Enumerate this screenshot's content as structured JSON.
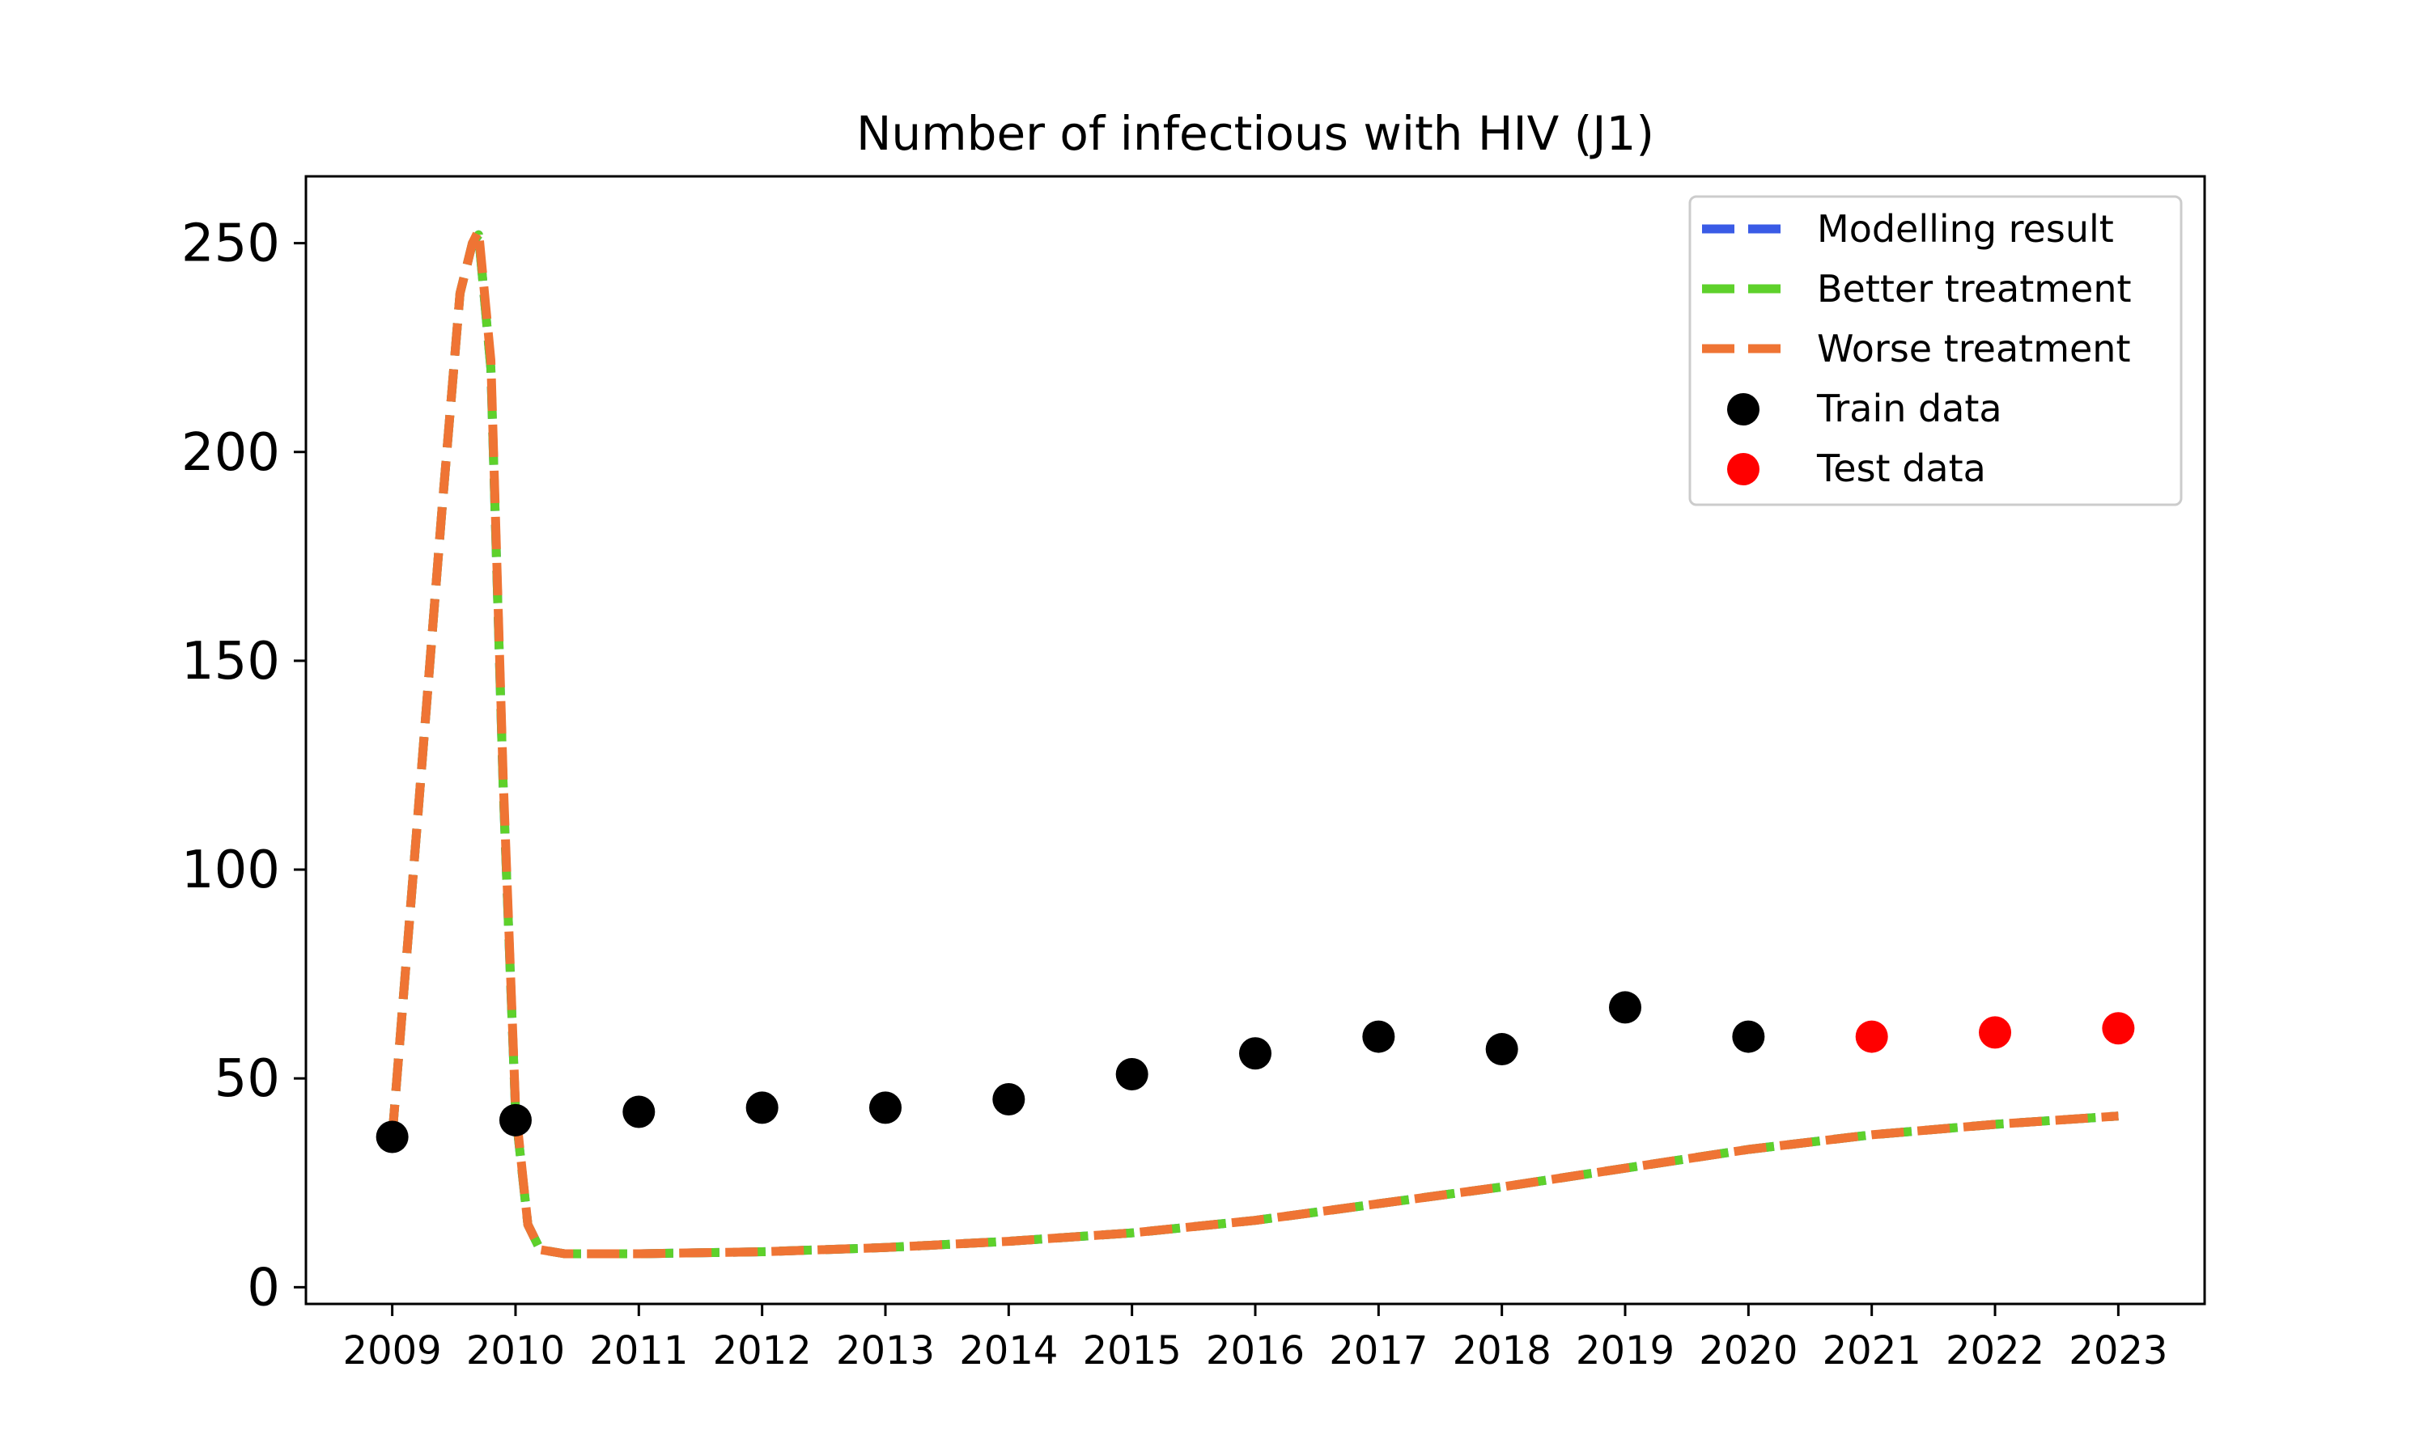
{
  "chart_data": {
    "type": "line",
    "title": "Number of infectious with HIV (J1)",
    "xlabel": "",
    "ylabel": "",
    "xlim": [
      2008.3,
      2023.7
    ],
    "ylim": [
      -4,
      266
    ],
    "x_ticks": [
      2009,
      2010,
      2011,
      2012,
      2013,
      2014,
      2015,
      2016,
      2017,
      2018,
      2019,
      2020,
      2021,
      2022,
      2023
    ],
    "x_tick_labels": [
      "2009",
      "2010",
      "2011",
      "2012",
      "2013",
      "2014",
      "2015",
      "2016",
      "2017",
      "2018",
      "2019",
      "2020",
      "2021",
      "2022",
      "2023"
    ],
    "y_ticks": [
      0,
      50,
      100,
      150,
      200,
      250
    ],
    "y_tick_labels": [
      "0",
      "50",
      "100",
      "150",
      "200",
      "250"
    ],
    "grid": false,
    "legend_position": "top-right",
    "series": [
      {
        "name": "Modelling result",
        "kind": "line",
        "style": "dashed",
        "color": "#3a5be6",
        "x": [
          2009.0,
          2009.2,
          2009.4,
          2009.55,
          2009.65,
          2009.7,
          2009.8,
          2009.9,
          2010.0,
          2010.1,
          2010.2,
          2010.3,
          2010.4,
          2010.6,
          2011.0,
          2012.0,
          2013.0,
          2014.0,
          2015.0,
          2016.0,
          2017.0,
          2018.0,
          2019.0,
          2020.0,
          2021.0,
          2022.0,
          2023.0
        ],
        "y": [
          36,
          110,
          185,
          238,
          250,
          252,
          220,
          120,
          42,
          15,
          9,
          8.5,
          8,
          8,
          8,
          8.5,
          9.5,
          11,
          13,
          16,
          20,
          24,
          28.5,
          33,
          36.5,
          39,
          41
        ]
      },
      {
        "name": "Better treatment",
        "kind": "line",
        "style": "dashed",
        "color": "#5ed12b",
        "x": [
          2009.0,
          2009.2,
          2009.4,
          2009.55,
          2009.65,
          2009.7,
          2009.8,
          2009.9,
          2010.0,
          2010.1,
          2010.2,
          2010.3,
          2010.4,
          2010.6,
          2011.0,
          2012.0,
          2013.0,
          2014.0,
          2015.0,
          2016.0,
          2017.0,
          2018.0,
          2019.0,
          2020.0,
          2021.0,
          2022.0,
          2023.0
        ],
        "y": [
          36,
          110,
          185,
          238,
          250,
          252,
          220,
          120,
          42,
          15,
          9,
          8.5,
          8,
          8,
          8,
          8.5,
          9.5,
          11,
          13,
          16,
          20,
          24,
          28.5,
          33,
          36.5,
          39,
          41
        ]
      },
      {
        "name": "Worse treatment",
        "kind": "line",
        "style": "dashed",
        "color": "#ef7434",
        "x": [
          2009.0,
          2009.2,
          2009.4,
          2009.55,
          2009.65,
          2009.7,
          2009.8,
          2009.9,
          2010.0,
          2010.1,
          2010.2,
          2010.3,
          2010.4,
          2010.6,
          2011.0,
          2012.0,
          2013.0,
          2014.0,
          2015.0,
          2016.0,
          2017.0,
          2018.0,
          2019.0,
          2020.0,
          2021.0,
          2022.0,
          2023.0
        ],
        "y": [
          36,
          110,
          185,
          238,
          250,
          253,
          222,
          122,
          43,
          15,
          9,
          8.5,
          8,
          8,
          8,
          8.5,
          9.5,
          11,
          13,
          16,
          20,
          24,
          28.5,
          33,
          36.5,
          39,
          41
        ]
      },
      {
        "name": "Train data",
        "kind": "scatter",
        "color": "#000000",
        "x": [
          2009,
          2010,
          2011,
          2012,
          2013,
          2014,
          2015,
          2016,
          2017,
          2018,
          2019,
          2020
        ],
        "y": [
          36,
          40,
          42,
          43,
          43,
          45,
          51,
          56,
          60,
          57,
          67,
          60
        ]
      },
      {
        "name": "Test data",
        "kind": "scatter",
        "color": "#ff0000",
        "x": [
          2021,
          2022,
          2023
        ],
        "y": [
          60,
          61,
          62
        ]
      }
    ]
  }
}
